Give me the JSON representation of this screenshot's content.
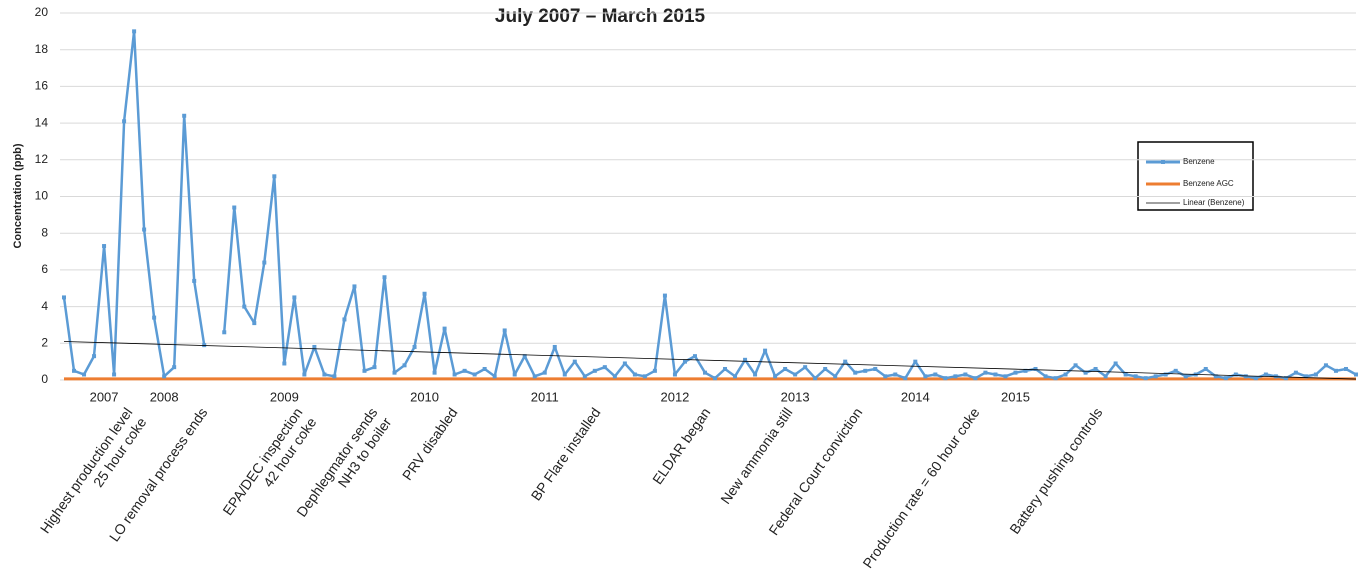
{
  "chart_data": {
    "type": "line",
    "title": "July 2007 – March 2015",
    "ylabel": "Concentration (ppb)",
    "categories": [
      null,
      null,
      null,
      null,
      "2007",
      null,
      null,
      null,
      null,
      null,
      "2008",
      null,
      null,
      null,
      null,
      null,
      null,
      null,
      null,
      null,
      null,
      null,
      "2009",
      null,
      null,
      null,
      null,
      null,
      null,
      null,
      null,
      null,
      null,
      null,
      null,
      null,
      "2010",
      null,
      null,
      null,
      null,
      null,
      null,
      null,
      null,
      null,
      null,
      null,
      "2011",
      null,
      null,
      null,
      null,
      null,
      null,
      null,
      null,
      null,
      null,
      null,
      null,
      "2012",
      null,
      null,
      null,
      null,
      null,
      null,
      null,
      null,
      null,
      null,
      null,
      "2013",
      null,
      null,
      null,
      null,
      null,
      null,
      null,
      null,
      null,
      null,
      null,
      "2014",
      null,
      null,
      null,
      null,
      null,
      null,
      null,
      null,
      null,
      "2015",
      null,
      null,
      null,
      null,
      null,
      null,
      null,
      null,
      null,
      null,
      null,
      null,
      null,
      null,
      null,
      null,
      null,
      null,
      null,
      null,
      null,
      null,
      null,
      null,
      null,
      null,
      null,
      null,
      null,
      null,
      null,
      null,
      null,
      null
    ],
    "series": [
      {
        "name": "Benzene",
        "color": "#5b9bd5",
        "values": [
          4.5,
          0.5,
          0.3,
          1.3,
          7.3,
          0.3,
          14.1,
          19.0,
          8.2,
          3.4,
          0.2,
          0.7,
          14.4,
          5.4,
          1.9,
          null,
          2.6,
          9.4,
          4.0,
          3.1,
          6.4,
          11.1,
          0.9,
          4.5,
          0.3,
          1.8,
          0.3,
          0.2,
          3.3,
          5.1,
          0.5,
          0.7,
          5.6,
          0.4,
          0.8,
          1.8,
          4.7,
          0.4,
          2.8,
          0.3,
          0.5,
          0.3,
          0.6,
          0.2,
          2.7,
          0.3,
          1.3,
          0.2,
          0.4,
          1.8,
          0.3,
          1.0,
          0.2,
          0.5,
          0.7,
          0.2,
          0.9,
          0.3,
          0.2,
          0.5,
          4.6,
          0.3,
          1.0,
          1.3,
          0.4,
          0.1,
          0.6,
          0.2,
          1.1,
          0.3,
          1.6,
          0.2,
          0.6,
          0.3,
          0.7,
          0.1,
          0.6,
          0.2,
          1.0,
          0.4,
          0.5,
          0.6,
          0.2,
          0.3,
          0.1,
          1.0,
          0.2,
          0.3,
          0.1,
          0.2,
          0.3,
          0.1,
          0.4,
          0.3,
          0.2,
          0.4,
          0.5,
          0.6,
          0.2,
          0.1,
          0.3,
          0.8,
          0.4,
          0.6,
          0.2,
          0.9,
          0.3,
          0.2,
          0.1,
          0.2,
          0.3,
          0.5,
          0.2,
          0.3,
          0.6,
          0.2,
          0.1,
          0.3,
          0.2,
          0.1,
          0.3,
          0.2,
          0.1,
          0.4,
          0.2,
          0.3,
          0.8,
          0.5,
          0.6,
          0.3
        ]
      }
    ],
    "agc": {
      "name": "Benzene AGC",
      "color": "#ed7d31",
      "value": 0.06
    },
    "trend": {
      "name": "Linear (Benzene)",
      "color": "#000000",
      "start": 2.1,
      "end": 0.05
    },
    "ylim": [
      0,
      20
    ],
    "yticks": [
      0,
      2,
      4,
      6,
      8,
      10,
      12,
      14,
      16,
      18,
      20
    ],
    "grid": true,
    "annotations": [
      [
        "Highest production level",
        "25 hour coke"
      ],
      [
        "LO removal process ends"
      ],
      [
        "EPA/DEC inspection",
        "42 hour coke"
      ],
      [
        "Dephlegmator sends",
        "NH3 to boiler"
      ],
      [
        "PRV disabled"
      ],
      [
        "BP Flare installed"
      ],
      [
        "ELDAR began"
      ],
      [
        "New ammonia still"
      ],
      [
        "Federal Court conviction"
      ],
      [
        "Production rate = 60 hour coke"
      ],
      [
        "Battery pushing controls"
      ]
    ]
  }
}
